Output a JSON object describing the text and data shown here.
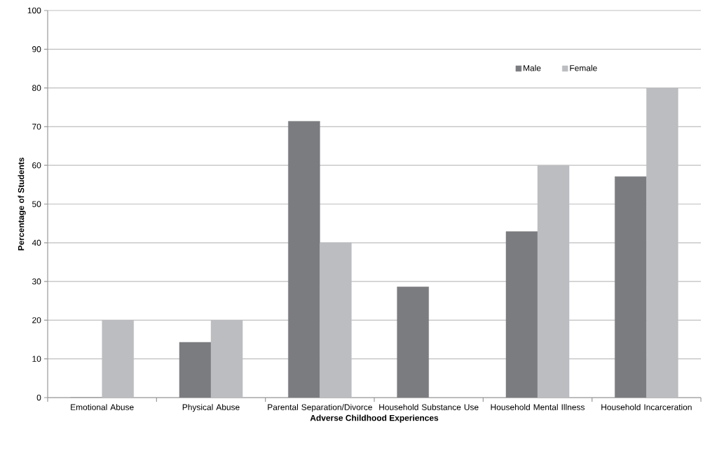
{
  "chart_data": {
    "type": "bar",
    "xlabel": "Adverse Childhood Experiences",
    "ylabel": "Percentage of Students",
    "categories": [
      "Emotional Abuse",
      "Physical Abuse",
      "Parental Separation/Divorce",
      "Household Substance Use",
      "Household Mental Illness",
      "Household Incarceration"
    ],
    "series": [
      {
        "name": "Male",
        "color": "#7b7c80",
        "values": [
          0,
          14.3,
          71.4,
          28.6,
          42.9,
          57.1
        ]
      },
      {
        "name": "Female",
        "color": "#bcbdc1",
        "values": [
          20,
          20,
          40,
          0,
          60,
          80
        ]
      }
    ],
    "ylim": [
      0,
      100
    ],
    "yticks": [
      0,
      10,
      20,
      30,
      40,
      50,
      60,
      70,
      80,
      90,
      100
    ],
    "grid": "y",
    "legend": "top right"
  }
}
